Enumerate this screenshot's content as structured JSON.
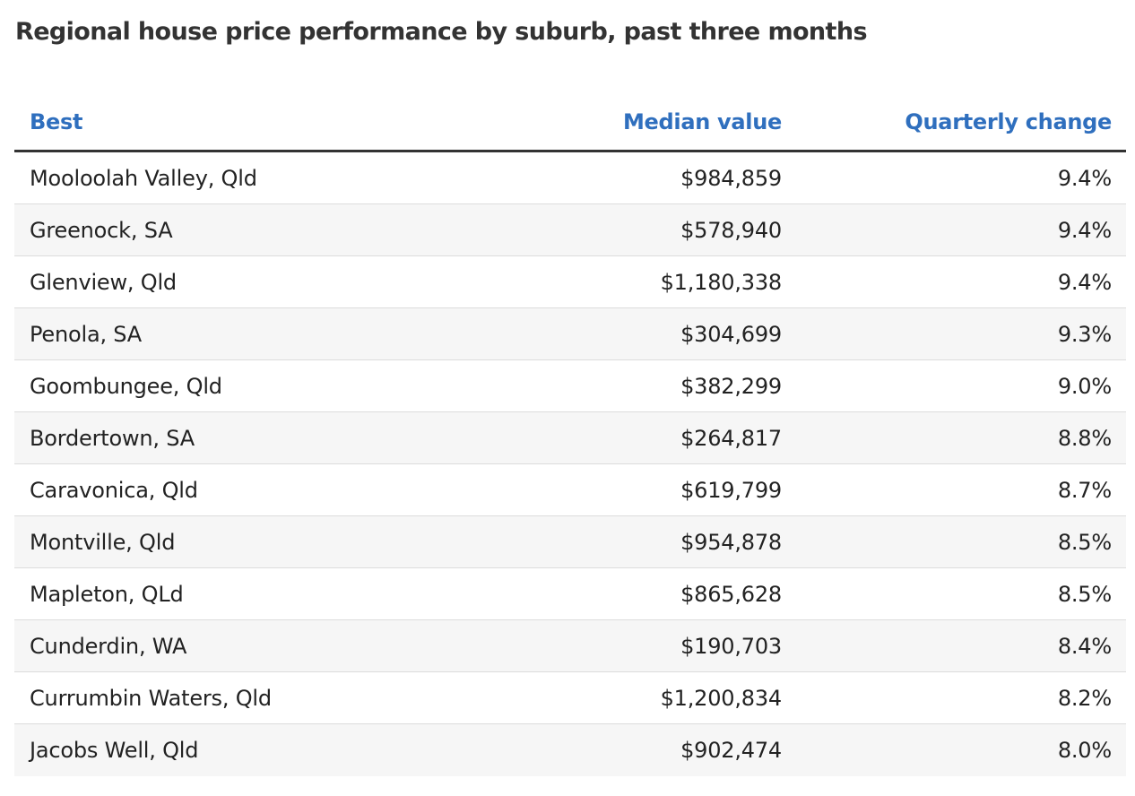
{
  "title": "Regional house price performance by suburb, past three months",
  "table": {
    "headers": {
      "name": "Best",
      "median": "Median value",
      "change": "Quarterly change"
    },
    "rows": [
      {
        "name": "Mooloolah Valley, Qld",
        "median": "$984,859",
        "change": "9.4%"
      },
      {
        "name": "Greenock, SA",
        "median": "$578,940",
        "change": "9.4%"
      },
      {
        "name": "Glenview, Qld",
        "median": "$1,180,338",
        "change": "9.4%"
      },
      {
        "name": "Penola, SA",
        "median": "$304,699",
        "change": "9.3%"
      },
      {
        "name": "Goombungee, Qld",
        "median": "$382,299",
        "change": "9.0%"
      },
      {
        "name": "Bordertown, SA",
        "median": "$264,817",
        "change": "8.8%"
      },
      {
        "name": "Caravonica, Qld",
        "median": "$619,799",
        "change": "8.7%"
      },
      {
        "name": "Montville, Qld",
        "median": "$954,878",
        "change": "8.5%"
      },
      {
        "name": "Mapleton, QLd",
        "median": "$865,628",
        "change": "8.5%"
      },
      {
        "name": "Cunderdin, WA",
        "median": "$190,703",
        "change": "8.4%"
      },
      {
        "name": "Currumbin Waters, Qld",
        "median": "$1,200,834",
        "change": "8.2%"
      },
      {
        "name": "Jacobs Well, Qld",
        "median": "$902,474",
        "change": "8.0%"
      }
    ]
  },
  "colors": {
    "header_text": "#2f6fbe",
    "title_text": "#333333",
    "row_alt_bg": "#f6f6f6"
  }
}
